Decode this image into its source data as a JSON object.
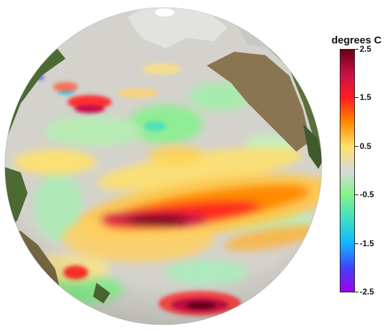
{
  "legend": {
    "title": "degrees C",
    "ticks": [
      {
        "label": "2.5",
        "value": 2.5
      },
      {
        "label": "1.5",
        "value": 1.5
      },
      {
        "label": "0.5",
        "value": 0.5
      },
      {
        "label": "-0.5",
        "value": -0.5
      },
      {
        "label": "-1.5",
        "value": -1.5
      },
      {
        "label": "-2.5",
        "value": -2.5
      }
    ],
    "range": [
      -2.5,
      2.5
    ],
    "colorscale": [
      {
        "value": 2.5,
        "color": "#6b0016"
      },
      {
        "value": 2.0,
        "color": "#c8104a"
      },
      {
        "value": 1.5,
        "color": "#ff1e1e"
      },
      {
        "value": 1.0,
        "color": "#ff8a00"
      },
      {
        "value": 0.5,
        "color": "#ffe26a"
      },
      {
        "value": 0.0,
        "color": "#d9d9d9"
      },
      {
        "value": -0.5,
        "color": "#84f28a"
      },
      {
        "value": -1.0,
        "color": "#3ddfc4"
      },
      {
        "value": -1.5,
        "color": "#12b6ff"
      },
      {
        "value": -2.0,
        "color": "#3f43ff"
      },
      {
        "value": -2.5,
        "color": "#a100e6"
      }
    ]
  },
  "map": {
    "projection": "orthographic globe",
    "ocean_colors": {
      "neutral": "#d4d2cc",
      "land_green": "#4c6a34",
      "land_brown": "#8a7553",
      "ice": "#e6e6e4"
    }
  }
}
